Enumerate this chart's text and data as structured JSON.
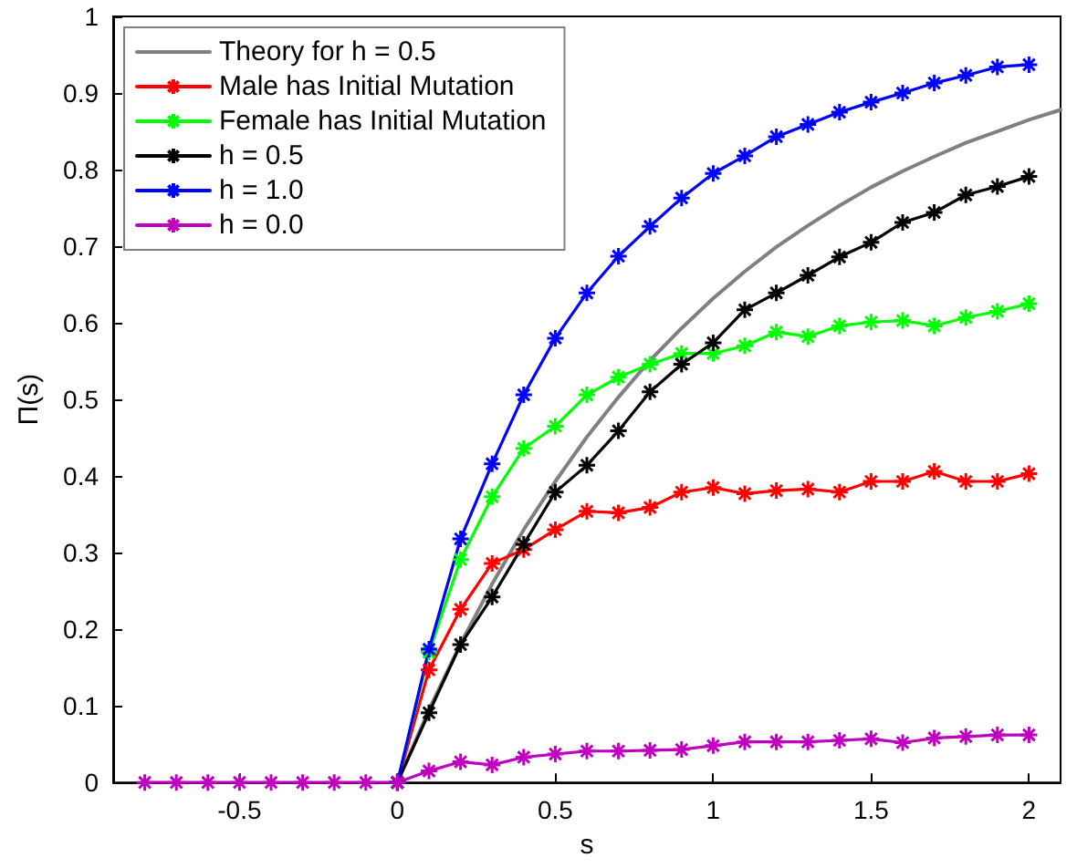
{
  "chart_data": {
    "type": "line",
    "xlabel": "s",
    "ylabel": "Π(s)",
    "xlim": [
      -0.9,
      2.1
    ],
    "xticks": [
      -0.5,
      0,
      0.5,
      1,
      1.5,
      2
    ],
    "ylim": [
      0,
      1
    ],
    "yticks": [
      0,
      0.1,
      0.2,
      0.3,
      0.4,
      0.5,
      0.6,
      0.7,
      0.8,
      0.9,
      1
    ],
    "grid": false,
    "legend": "top left",
    "marker": "cross",
    "line_style": "solid",
    "series": [
      {
        "name": "Theory for h = 0.5",
        "color": "#808080",
        "marker": "none",
        "x": [
          0,
          0.1,
          0.2,
          0.3,
          0.4,
          0.5,
          0.6,
          0.7,
          0.8,
          0.9,
          1,
          1.1,
          1.2,
          1.3,
          1.4,
          1.5,
          1.6,
          1.7,
          1.8,
          1.9,
          2,
          2.1
        ],
        "values": [
          0,
          0.095,
          0.181,
          0.259,
          0.33,
          0.393,
          0.451,
          0.503,
          0.551,
          0.593,
          0.632,
          0.667,
          0.699,
          0.727,
          0.753,
          0.777,
          0.798,
          0.817,
          0.835,
          0.85,
          0.865,
          0.878
        ]
      },
      {
        "name": "Male has Initial Mutation",
        "color": "#ff0000",
        "x": [
          0,
          0.1,
          0.2,
          0.3,
          0.4,
          0.5,
          0.6,
          0.7,
          0.8,
          0.9,
          1,
          1.1,
          1.2,
          1.3,
          1.4,
          1.5,
          1.6,
          1.7,
          1.8,
          1.9,
          2
        ],
        "values": [
          0,
          0.147,
          0.226,
          0.286,
          0.304,
          0.33,
          0.354,
          0.352,
          0.359,
          0.379,
          0.385,
          0.377,
          0.381,
          0.383,
          0.379,
          0.393,
          0.393,
          0.406,
          0.393,
          0.393,
          0.403
        ]
      },
      {
        "name": "Female has Initial Mutation",
        "color": "#00ff00",
        "x": [
          0,
          0.1,
          0.2,
          0.3,
          0.4,
          0.5,
          0.6,
          0.7,
          0.8,
          0.9,
          1,
          1.1,
          1.2,
          1.3,
          1.4,
          1.5,
          1.6,
          1.7,
          1.8,
          1.9,
          2
        ],
        "values": [
          0,
          0.17,
          0.291,
          0.373,
          0.436,
          0.465,
          0.506,
          0.529,
          0.546,
          0.56,
          0.56,
          0.57,
          0.588,
          0.582,
          0.596,
          0.601,
          0.603,
          0.596,
          0.607,
          0.615,
          0.625
        ]
      },
      {
        "name": "h = 0.5",
        "color": "#000000",
        "x": [
          0,
          0.1,
          0.2,
          0.3,
          0.4,
          0.5,
          0.6,
          0.7,
          0.8,
          0.9,
          1,
          1.1,
          1.2,
          1.3,
          1.4,
          1.5,
          1.6,
          1.7,
          1.8,
          1.9,
          2
        ],
        "values": [
          0,
          0.091,
          0.18,
          0.242,
          0.311,
          0.379,
          0.414,
          0.459,
          0.51,
          0.546,
          0.574,
          0.617,
          0.639,
          0.662,
          0.686,
          0.705,
          0.731,
          0.744,
          0.767,
          0.778,
          0.791
        ]
      },
      {
        "name": "h = 1.0",
        "color": "#0000ff",
        "x": [
          0,
          0.1,
          0.2,
          0.3,
          0.4,
          0.5,
          0.6,
          0.7,
          0.8,
          0.9,
          1,
          1.1,
          1.2,
          1.3,
          1.4,
          1.5,
          1.6,
          1.7,
          1.8,
          1.9,
          2
        ],
        "values": [
          0,
          0.174,
          0.318,
          0.416,
          0.506,
          0.58,
          0.639,
          0.687,
          0.726,
          0.763,
          0.795,
          0.818,
          0.843,
          0.859,
          0.875,
          0.888,
          0.9,
          0.913,
          0.923,
          0.934,
          0.937
        ]
      },
      {
        "name": "h = 0.0",
        "color": "#bf00bf",
        "x": [
          -0.8,
          -0.7,
          -0.6,
          -0.5,
          -0.4,
          -0.3,
          -0.2,
          -0.1,
          0,
          0.1,
          0.2,
          0.3,
          0.4,
          0.5,
          0.6,
          0.7,
          0.8,
          0.9,
          1,
          1.1,
          1.2,
          1.3,
          1.4,
          1.5,
          1.6,
          1.7,
          1.8,
          1.9,
          2
        ],
        "values": [
          0,
          0,
          0,
          0,
          0,
          0,
          0,
          0,
          0,
          0.015,
          0.027,
          0.023,
          0.033,
          0.037,
          0.041,
          0.041,
          0.042,
          0.043,
          0.048,
          0.053,
          0.053,
          0.053,
          0.055,
          0.057,
          0.052,
          0.058,
          0.06,
          0.062,
          0.062
        ]
      }
    ]
  }
}
